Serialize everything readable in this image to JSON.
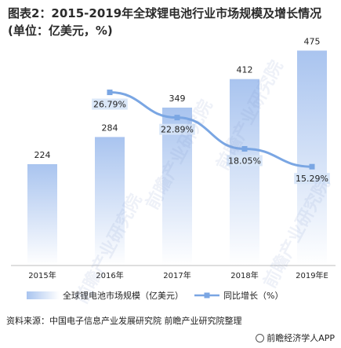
{
  "title": "图表2：2015-2019年全球锂电池行业市场规模及增长情况(单位：亿美元，%)",
  "source": "资料来源：中国电子信息产业发展研究院 前瞻产业研究院整理",
  "brand": "前瞻经济学人APP",
  "watermark": "前瞻产业研究院",
  "colors": {
    "bar_top": "#a9c4ef",
    "bar_bottom": "#ffffff",
    "line": "#7aa6e3",
    "label_bg": "#d6e4f7"
  },
  "chart_data": {
    "type": "bar+line",
    "categories": [
      "2015年",
      "2016年",
      "2017年",
      "2018年",
      "2019年E"
    ],
    "series": [
      {
        "name": "全球锂电池市场规模（亿美元）",
        "type": "bar",
        "values": [
          224,
          284,
          349,
          412,
          475
        ],
        "labels": [
          "224",
          "284",
          "349",
          "412",
          "475"
        ]
      },
      {
        "name": "同比增长（%）",
        "type": "line",
        "values": [
          null,
          26.79,
          22.89,
          18.05,
          15.29
        ],
        "labels": [
          "",
          "26.79%",
          "22.89%",
          "18.05%",
          "15.29%"
        ]
      }
    ],
    "ylim_bar": [
      0,
      500
    ],
    "ylim_line": [
      0,
      35
    ],
    "grid": false,
    "legend": "bottom"
  }
}
